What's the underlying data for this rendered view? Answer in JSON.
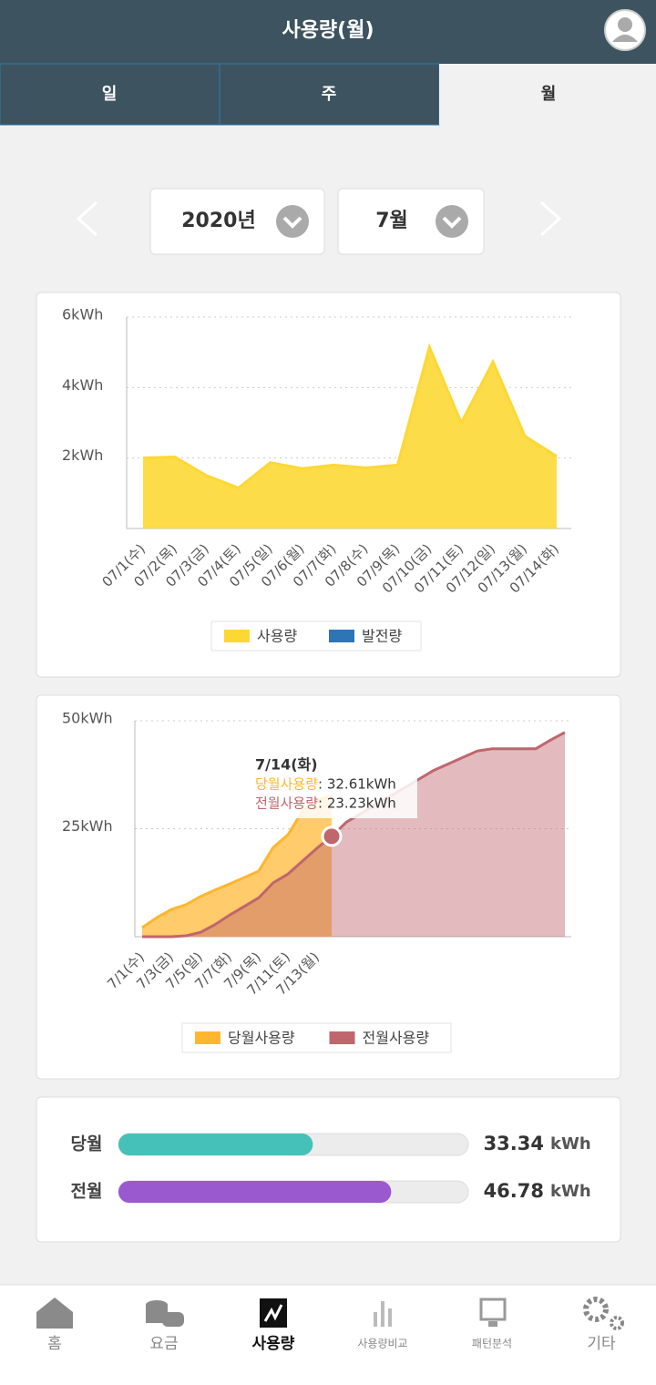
{
  "header": {
    "title": "사용량(월)"
  },
  "tabs": [
    {
      "label": "일",
      "active": false
    },
    {
      "label": "주",
      "active": false
    },
    {
      "label": "월",
      "active": true
    }
  ],
  "selectors": {
    "year": "2020년",
    "month": "7월"
  },
  "usage_chart": {
    "type": "area",
    "categories": [
      "07/1(수)",
      "07/2(목)",
      "07/3(금)",
      "07/4(토)",
      "07/5(일)",
      "07/6(월)",
      "07/7(화)",
      "07/8(수)",
      "07/9(목)",
      "07/10(금)",
      "07/11(토)",
      "07/12(일)",
      "07/13(월)",
      "07/14(화)"
    ],
    "series": [
      {
        "name": "사용량",
        "color": "#fdd835",
        "values": [
          2.0,
          2.03,
          1.5,
          1.15,
          1.87,
          1.7,
          1.8,
          1.72,
          1.8,
          5.15,
          3.0,
          4.73,
          2.62,
          2.05
        ]
      },
      {
        "name": "발전량",
        "color": "#2e75b6",
        "values": [
          null,
          null,
          null,
          null,
          null,
          null,
          null,
          null,
          null,
          null,
          null,
          null,
          null,
          null
        ]
      }
    ],
    "ylim": [
      0,
      6
    ],
    "yticks": [
      {
        "value": 2,
        "label": "2kWh"
      },
      {
        "value": 4,
        "label": "4kWh"
      },
      {
        "value": 6,
        "label": "6kWh"
      }
    ],
    "grid": true
  },
  "cumulative_chart": {
    "type": "area",
    "categories": [
      "7/1(수)",
      null,
      "7/3(금)",
      null,
      "7/5(일)",
      null,
      "7/7(화)",
      null,
      "7/9(목)",
      null,
      "7/11(토)",
      null,
      "7/13(월)",
      null,
      null,
      null,
      null,
      null,
      null,
      null,
      null,
      null,
      null,
      null,
      null,
      null,
      null,
      null,
      null,
      null
    ],
    "series": [
      {
        "name": "당월사용량",
        "color": "#ffb62e",
        "values": [
          2.1,
          4.4,
          6.3,
          7.4,
          9.3,
          10.8,
          12.2,
          13.7,
          15.2,
          20.7,
          23.6,
          29.1,
          31.6,
          32.61,
          null,
          null,
          null,
          null,
          null,
          null,
          null,
          null,
          null,
          null,
          null,
          null,
          null,
          null,
          null,
          null
        ]
      },
      {
        "name": "전월사용량",
        "color": "#c0666d",
        "values": [
          0,
          0,
          0,
          0.2,
          1,
          2.8,
          5,
          7,
          9,
          12.5,
          14.5,
          17.5,
          20.5,
          23.23,
          26.5,
          28.5,
          30.5,
          32.5,
          34.5,
          36.5,
          38.5,
          40,
          41.5,
          43,
          43.5,
          43.5,
          43.5,
          43.5,
          45.5,
          47.3
        ]
      }
    ],
    "ylim": [
      0,
      50
    ],
    "yticks": [
      {
        "value": 25,
        "label": "25kWh"
      },
      {
        "value": 50,
        "label": "50kWh"
      }
    ],
    "grid": true,
    "tooltip": {
      "index": 13,
      "title": "7/14(화)",
      "lines": [
        {
          "name": "당월사용량",
          "value": ": 32.61kWh"
        },
        {
          "name": "전월사용량",
          "value": ": 23.23kWh"
        }
      ]
    }
  },
  "comparison": {
    "xlim": [
      0,
      60
    ],
    "unit": "kWh",
    "bars": [
      {
        "name": "당월",
        "value": 33.34,
        "color": "#45c1b9"
      },
      {
        "name": "전월",
        "value": 46.78,
        "color": "#9b59d0"
      }
    ]
  },
  "nav": [
    {
      "label": "홈",
      "active": false
    },
    {
      "label": "요금",
      "active": false
    },
    {
      "label": "사용량",
      "active": true
    },
    {
      "label": "사용량비교",
      "active": false
    },
    {
      "label": "패턴분석",
      "active": false
    },
    {
      "label": "기타",
      "active": false
    }
  ]
}
